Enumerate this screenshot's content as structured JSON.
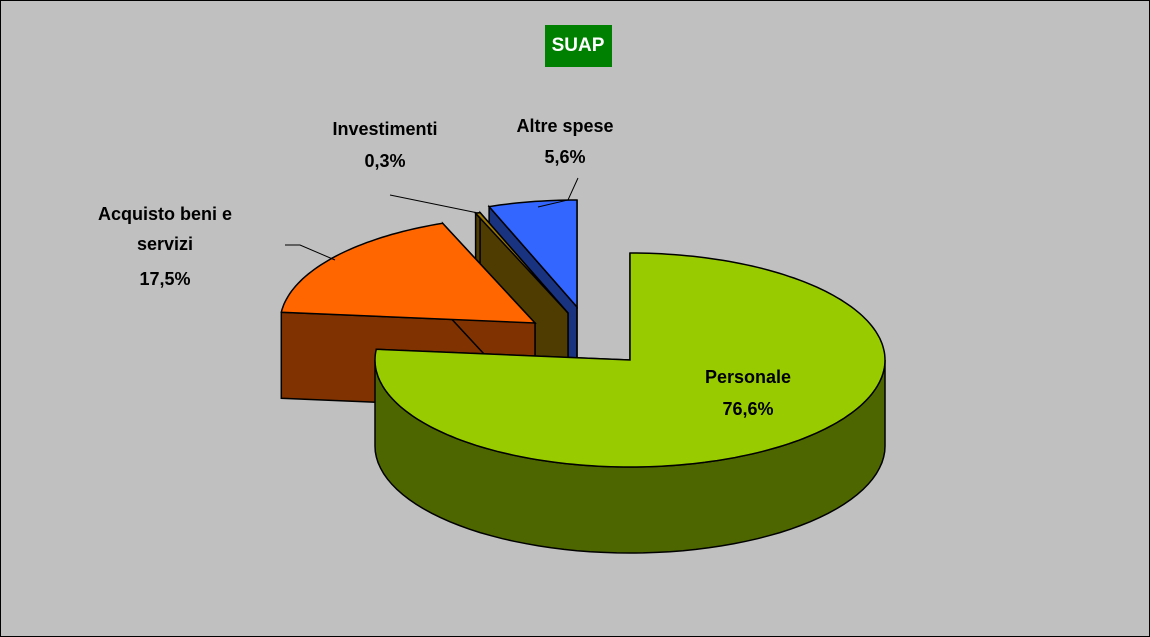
{
  "chart_data": {
    "type": "pie3d",
    "title": "SUAP",
    "categories": [
      "Personale",
      "Acquisto beni e servizi",
      "Investimenti",
      "Altre spese"
    ],
    "values": [
      76.6,
      17.5,
      0.3,
      5.6
    ],
    "value_labels": [
      "76,6%",
      "17,5%",
      "0,3%",
      "5,6%"
    ],
    "colors": [
      "#99cc00",
      "#ff6600",
      "#9c7800",
      "#3366ff"
    ]
  }
}
